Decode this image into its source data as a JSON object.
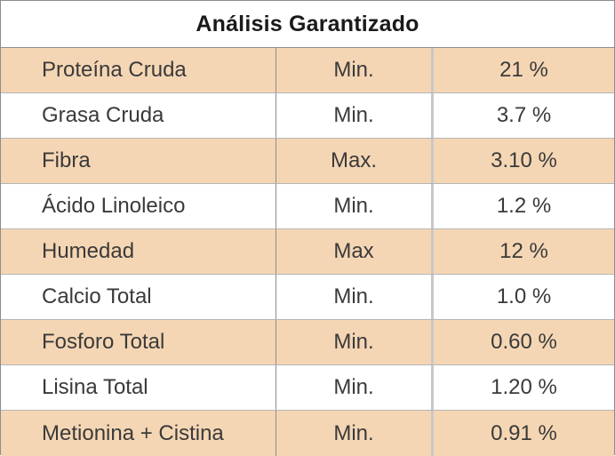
{
  "title": "Análisis Garantizado",
  "rows": [
    {
      "nutrient": "Proteína Cruda",
      "type": "Min.",
      "value": "21 %"
    },
    {
      "nutrient": "Grasa Cruda",
      "type": "Min.",
      "value": "3.7 %"
    },
    {
      "nutrient": "Fibra",
      "type": "Max.",
      "value": "3.10 %"
    },
    {
      "nutrient": "Ácido Linoleico",
      "type": "Min.",
      "value": "1.2 %"
    },
    {
      "nutrient": "Humedad",
      "type": "Max",
      "value": "12 %"
    },
    {
      "nutrient": "Calcio Total",
      "type": "Min.",
      "value": "1.0 %"
    },
    {
      "nutrient": "Fosforo Total",
      "type": "Min.",
      "value": "0.60 %"
    },
    {
      "nutrient": "Lisina Total",
      "type": "Min.",
      "value": "1.20 %"
    },
    {
      "nutrient": "Metionina + Cistina",
      "type": "Min.",
      "value": "0.91 %"
    }
  ],
  "colors": {
    "alt_row_fill": "#f5d6b4",
    "border": "#8c8c8c"
  }
}
